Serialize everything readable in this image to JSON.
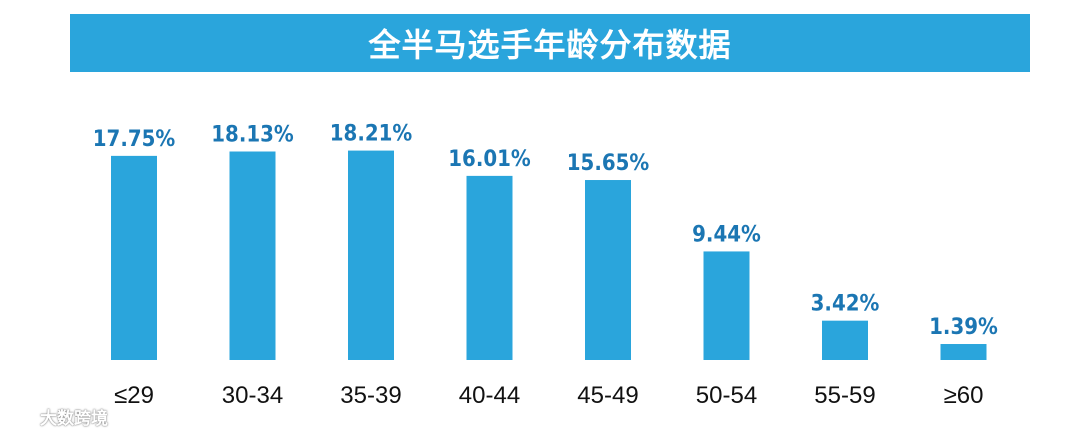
{
  "colors": {
    "bar": "#2aa5dc",
    "banner": "#2aa5dc",
    "value_label": "#1b76b3",
    "axis_label": "#111111",
    "title_text": "#ffffff"
  },
  "watermark": {
    "text": "大数跨境",
    "icon": "dashuju-logo-icon"
  },
  "chart_data": {
    "type": "bar",
    "title": "全半马选手年龄分布数据",
    "xlabel": "",
    "ylabel": "",
    "categories": [
      "≤29",
      "30-34",
      "35-39",
      "40-44",
      "45-49",
      "50-54",
      "55-59",
      "≥60"
    ],
    "values": [
      17.75,
      18.13,
      18.21,
      16.01,
      15.65,
      9.44,
      3.42,
      1.39
    ],
    "value_labels": [
      "17.75%",
      "18.13%",
      "18.21%",
      "16.01%",
      "15.65%",
      "9.44%",
      "3.42%",
      "1.39%"
    ],
    "unit": "%",
    "ylim": [
      0,
      20
    ],
    "grid": false,
    "legend": "none"
  }
}
